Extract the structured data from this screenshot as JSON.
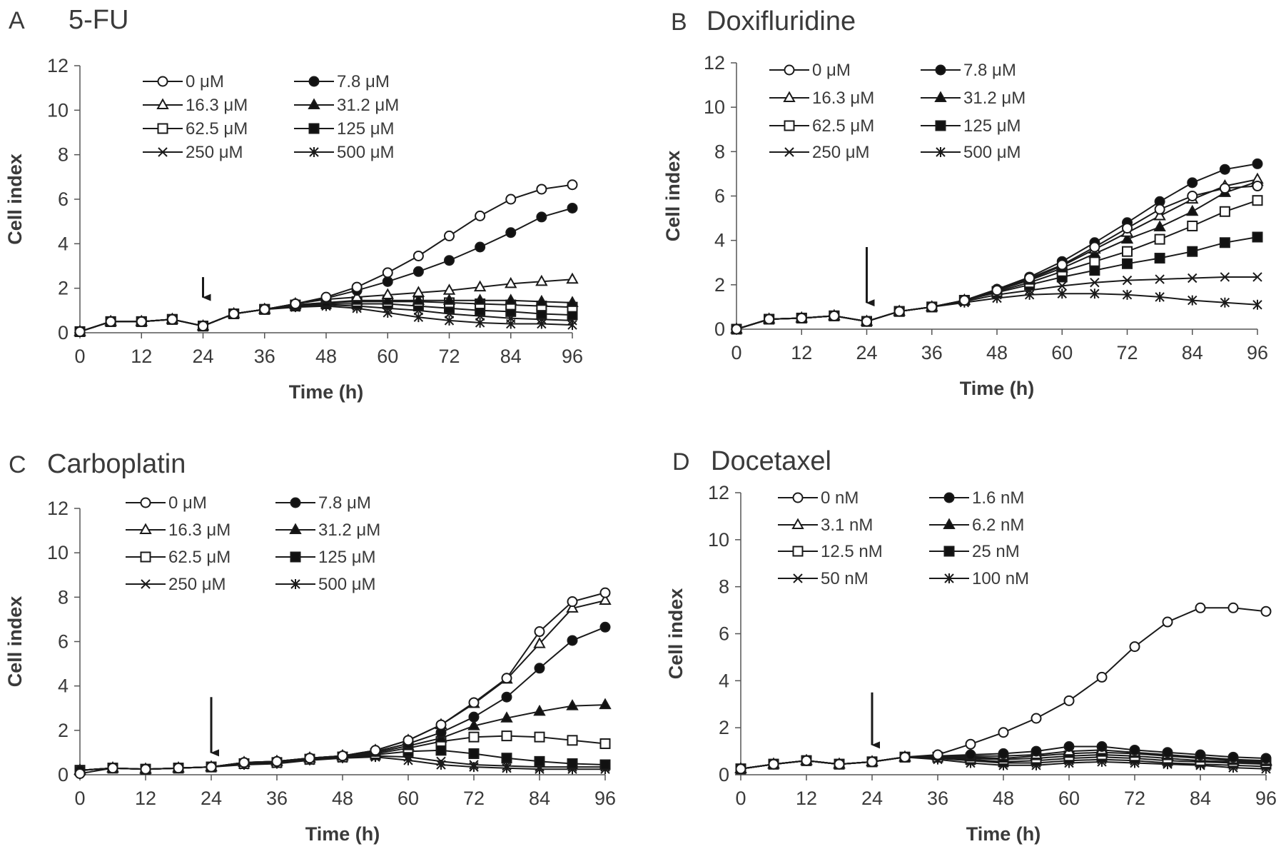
{
  "chart_data": [
    {
      "type": "line",
      "panel_letter": "A",
      "title": "5-FU",
      "xlabel": "Time (h)",
      "ylabel": "Cell index",
      "xlim": [
        0,
        96
      ],
      "ylim": [
        0,
        12
      ],
      "xticks": [
        0,
        12,
        24,
        36,
        48,
        60,
        72,
        84,
        96
      ],
      "yticks": [
        0,
        2,
        4,
        6,
        8,
        10,
        12
      ],
      "grid": false,
      "legend_position": "top",
      "annotation": {
        "type": "arrow",
        "x": 24,
        "y_from": 2.5,
        "y_to": 1.2
      },
      "x": [
        0,
        6,
        12,
        18,
        24,
        30,
        36,
        42,
        48,
        54,
        60,
        66,
        72,
        78,
        84,
        90,
        96
      ],
      "series": [
        {
          "name": "0 μM",
          "marker": "circle-open",
          "values": [
            0.05,
            0.5,
            0.5,
            0.6,
            0.3,
            0.85,
            1.05,
            1.3,
            1.6,
            2.05,
            2.7,
            3.45,
            4.35,
            5.25,
            6.0,
            6.45,
            6.65
          ]
        },
        {
          "name": "7.8 μM",
          "marker": "circle-filled",
          "values": [
            0.05,
            0.5,
            0.5,
            0.6,
            0.3,
            0.85,
            1.05,
            1.3,
            1.55,
            1.9,
            2.3,
            2.75,
            3.25,
            3.85,
            4.5,
            5.2,
            5.6
          ]
        },
        {
          "name": "16.3 μM",
          "marker": "triangle-open",
          "values": [
            0.05,
            0.5,
            0.5,
            0.6,
            0.3,
            0.85,
            1.05,
            1.3,
            1.5,
            1.6,
            1.7,
            1.8,
            1.9,
            2.05,
            2.2,
            2.3,
            2.4
          ]
        },
        {
          "name": "31.2 μM",
          "marker": "triangle-filled",
          "values": [
            0.05,
            0.5,
            0.5,
            0.6,
            0.3,
            0.85,
            1.05,
            1.25,
            1.35,
            1.45,
            1.45,
            1.45,
            1.45,
            1.45,
            1.45,
            1.4,
            1.35
          ]
        },
        {
          "name": "62.5 μM",
          "marker": "square-open",
          "values": [
            0.05,
            0.5,
            0.5,
            0.6,
            0.3,
            0.85,
            1.05,
            1.25,
            1.35,
            1.4,
            1.4,
            1.4,
            1.35,
            1.3,
            1.25,
            1.2,
            1.15
          ]
        },
        {
          "name": "125 μM",
          "marker": "square-filled",
          "values": [
            0.05,
            0.5,
            0.5,
            0.6,
            0.3,
            0.85,
            1.05,
            1.2,
            1.3,
            1.3,
            1.3,
            1.2,
            1.1,
            1.0,
            0.95,
            0.85,
            0.8
          ]
        },
        {
          "name": "250 μM",
          "marker": "x",
          "values": [
            0.05,
            0.5,
            0.5,
            0.6,
            0.3,
            0.85,
            1.05,
            1.2,
            1.25,
            1.2,
            1.1,
            1.0,
            0.85,
            0.75,
            0.65,
            0.6,
            0.55
          ]
        },
        {
          "name": "500 μM",
          "marker": "asterisk",
          "values": [
            0.05,
            0.5,
            0.5,
            0.6,
            0.3,
            0.85,
            1.05,
            1.15,
            1.2,
            1.1,
            0.9,
            0.7,
            0.55,
            0.45,
            0.4,
            0.4,
            0.35
          ]
        }
      ]
    },
    {
      "type": "line",
      "panel_letter": "B",
      "title": "Doxifluridine",
      "xlabel": "Time (h)",
      "ylabel": "Cell index",
      "xlim": [
        0,
        96
      ],
      "ylim": [
        0,
        12
      ],
      "xticks": [
        0,
        12,
        24,
        36,
        48,
        60,
        72,
        84,
        96
      ],
      "yticks": [
        0,
        2,
        4,
        6,
        8,
        10,
        12
      ],
      "grid": false,
      "legend_position": "top",
      "annotation": {
        "type": "arrow",
        "x": 24,
        "y_from": 3.7,
        "y_to": 0.8
      },
      "x": [
        0,
        6,
        12,
        18,
        24,
        30,
        36,
        42,
        48,
        54,
        60,
        66,
        72,
        78,
        84,
        90,
        96
      ],
      "series": [
        {
          "name": "0 μM",
          "marker": "circle-open",
          "values": [
            0.0,
            0.45,
            0.5,
            0.6,
            0.35,
            0.8,
            1.0,
            1.3,
            1.75,
            2.3,
            2.9,
            3.7,
            4.55,
            5.4,
            6.0,
            6.35,
            6.45
          ]
        },
        {
          "name": "7.8 μM",
          "marker": "circle-filled",
          "values": [
            0.0,
            0.45,
            0.5,
            0.6,
            0.35,
            0.8,
            1.0,
            1.3,
            1.8,
            2.35,
            3.05,
            3.9,
            4.8,
            5.75,
            6.6,
            7.2,
            7.45
          ]
        },
        {
          "name": "16.3 μM",
          "marker": "triangle-open",
          "values": [
            0.0,
            0.45,
            0.5,
            0.6,
            0.35,
            0.8,
            1.0,
            1.3,
            1.75,
            2.25,
            2.85,
            3.6,
            4.35,
            5.1,
            5.85,
            6.45,
            6.75
          ]
        },
        {
          "name": "31.2 μM",
          "marker": "triangle-filled",
          "values": [
            0.0,
            0.45,
            0.5,
            0.6,
            0.35,
            0.8,
            1.0,
            1.3,
            1.75,
            2.2,
            2.75,
            3.4,
            4.05,
            4.6,
            5.3,
            6.15,
            6.65
          ]
        },
        {
          "name": "62.5 μM",
          "marker": "square-open",
          "values": [
            0.0,
            0.45,
            0.5,
            0.6,
            0.35,
            0.8,
            1.0,
            1.3,
            1.7,
            2.1,
            2.6,
            3.05,
            3.5,
            4.05,
            4.65,
            5.3,
            5.8
          ]
        },
        {
          "name": "125 μM",
          "marker": "square-filled",
          "values": [
            0.0,
            0.45,
            0.5,
            0.6,
            0.35,
            0.8,
            1.0,
            1.3,
            1.65,
            2.0,
            2.35,
            2.65,
            2.95,
            3.2,
            3.5,
            3.9,
            4.15
          ]
        },
        {
          "name": "250 μM",
          "marker": "x",
          "values": [
            0.0,
            0.45,
            0.5,
            0.6,
            0.35,
            0.8,
            1.0,
            1.25,
            1.55,
            1.75,
            1.95,
            2.1,
            2.2,
            2.25,
            2.3,
            2.35,
            2.35
          ]
        },
        {
          "name": "500 μM",
          "marker": "asterisk",
          "values": [
            0.0,
            0.45,
            0.5,
            0.6,
            0.35,
            0.8,
            1.0,
            1.2,
            1.4,
            1.55,
            1.6,
            1.6,
            1.55,
            1.45,
            1.3,
            1.2,
            1.1
          ]
        }
      ]
    },
    {
      "type": "line",
      "panel_letter": "C",
      "title": "Carboplatin",
      "xlabel": "Time (h)",
      "ylabel": "Cell index",
      "xlim": [
        0,
        96
      ],
      "ylim": [
        0,
        12
      ],
      "xticks": [
        0,
        12,
        24,
        36,
        48,
        60,
        72,
        84,
        96
      ],
      "yticks": [
        0,
        2,
        4,
        6,
        8,
        10,
        12
      ],
      "grid": false,
      "legend_position": "top",
      "annotation": {
        "type": "arrow",
        "x": 24,
        "y_from": 3.5,
        "y_to": 0.6
      },
      "x": [
        0,
        6,
        12,
        18,
        24,
        30,
        36,
        42,
        48,
        54,
        60,
        66,
        72,
        78,
        84,
        90,
        96
      ],
      "series": [
        {
          "name": "0 μM",
          "marker": "circle-open",
          "values": [
            0.05,
            0.3,
            0.25,
            0.3,
            0.35,
            0.55,
            0.6,
            0.75,
            0.85,
            1.1,
            1.55,
            2.25,
            3.25,
            4.35,
            6.45,
            7.8,
            8.2
          ]
        },
        {
          "name": "7.8 μM",
          "marker": "circle-filled",
          "values": [
            0.2,
            0.3,
            0.25,
            0.3,
            0.35,
            0.55,
            0.6,
            0.75,
            0.85,
            1.05,
            1.4,
            1.9,
            2.6,
            3.5,
            4.8,
            6.05,
            6.65
          ]
        },
        {
          "name": "16.3 μM",
          "marker": "triangle-open",
          "values": [
            0.2,
            0.3,
            0.25,
            0.3,
            0.35,
            0.55,
            0.6,
            0.75,
            0.85,
            1.1,
            1.55,
            2.25,
            3.2,
            4.3,
            5.9,
            7.5,
            7.85
          ]
        },
        {
          "name": "31.2 μM",
          "marker": "triangle-filled",
          "values": [
            0.2,
            0.3,
            0.25,
            0.3,
            0.35,
            0.55,
            0.6,
            0.75,
            0.85,
            1.0,
            1.3,
            1.65,
            2.2,
            2.55,
            2.85,
            3.1,
            3.15
          ]
        },
        {
          "name": "62.5 μM",
          "marker": "square-open",
          "values": [
            0.2,
            0.3,
            0.25,
            0.3,
            0.35,
            0.5,
            0.55,
            0.7,
            0.8,
            0.95,
            1.2,
            1.5,
            1.7,
            1.75,
            1.7,
            1.55,
            1.4
          ]
        },
        {
          "name": "125 μM",
          "marker": "square-filled",
          "values": [
            0.2,
            0.3,
            0.25,
            0.3,
            0.35,
            0.5,
            0.55,
            0.7,
            0.8,
            0.9,
            1.05,
            1.1,
            0.95,
            0.75,
            0.6,
            0.5,
            0.45
          ]
        },
        {
          "name": "250 μM",
          "marker": "x",
          "values": [
            0.2,
            0.3,
            0.25,
            0.3,
            0.35,
            0.5,
            0.55,
            0.7,
            0.8,
            0.85,
            0.8,
            0.6,
            0.45,
            0.4,
            0.35,
            0.35,
            0.35
          ]
        },
        {
          "name": "500 μM",
          "marker": "asterisk",
          "values": [
            0.2,
            0.3,
            0.25,
            0.3,
            0.35,
            0.45,
            0.5,
            0.65,
            0.75,
            0.8,
            0.65,
            0.45,
            0.35,
            0.3,
            0.25,
            0.25,
            0.25
          ]
        }
      ]
    },
    {
      "type": "line",
      "panel_letter": "D",
      "title": "Docetaxel",
      "xlabel": "Time (h)",
      "ylabel": "Cell index",
      "xlim": [
        0,
        96
      ],
      "ylim": [
        0,
        12
      ],
      "xticks": [
        0,
        12,
        24,
        36,
        48,
        60,
        72,
        84,
        96
      ],
      "yticks": [
        0,
        2,
        4,
        6,
        8,
        10,
        12
      ],
      "grid": false,
      "legend_position": "top",
      "annotation": {
        "type": "arrow",
        "x": 24,
        "y_from": 3.5,
        "y_to": 0.9
      },
      "x": [
        0,
        6,
        12,
        18,
        24,
        30,
        36,
        42,
        48,
        54,
        60,
        66,
        72,
        78,
        84,
        90,
        96
      ],
      "series": [
        {
          "name": "0 nM",
          "marker": "circle-open",
          "values": [
            0.25,
            0.45,
            0.6,
            0.45,
            0.55,
            0.75,
            0.85,
            1.3,
            1.8,
            2.4,
            3.15,
            4.15,
            5.45,
            6.5,
            7.1,
            7.1,
            6.95
          ]
        },
        {
          "name": "1.6 nM",
          "marker": "circle-filled",
          "values": [
            0.25,
            0.45,
            0.6,
            0.45,
            0.55,
            0.75,
            0.8,
            0.85,
            0.9,
            1.0,
            1.2,
            1.2,
            1.05,
            0.95,
            0.85,
            0.75,
            0.7
          ]
        },
        {
          "name": "3.1 nM",
          "marker": "triangle-open",
          "values": [
            0.25,
            0.45,
            0.6,
            0.45,
            0.55,
            0.75,
            0.8,
            0.8,
            0.8,
            0.85,
            1.0,
            1.05,
            0.95,
            0.85,
            0.75,
            0.65,
            0.6
          ]
        },
        {
          "name": "6.2 nM",
          "marker": "triangle-filled",
          "values": [
            0.25,
            0.45,
            0.6,
            0.45,
            0.55,
            0.75,
            0.8,
            0.75,
            0.7,
            0.8,
            0.9,
            0.95,
            0.9,
            0.8,
            0.7,
            0.6,
            0.55
          ]
        },
        {
          "name": "12.5 nM",
          "marker": "square-open",
          "values": [
            0.25,
            0.45,
            0.6,
            0.45,
            0.55,
            0.75,
            0.75,
            0.7,
            0.65,
            0.7,
            0.8,
            0.85,
            0.8,
            0.7,
            0.6,
            0.55,
            0.5
          ]
        },
        {
          "name": "25 nM",
          "marker": "square-filled",
          "values": [
            0.25,
            0.45,
            0.6,
            0.45,
            0.55,
            0.75,
            0.75,
            0.65,
            0.55,
            0.6,
            0.7,
            0.75,
            0.7,
            0.6,
            0.55,
            0.5,
            0.45
          ]
        },
        {
          "name": "50 nM",
          "marker": "x",
          "values": [
            0.25,
            0.45,
            0.6,
            0.45,
            0.55,
            0.75,
            0.7,
            0.6,
            0.5,
            0.5,
            0.6,
            0.65,
            0.6,
            0.5,
            0.45,
            0.4,
            0.35
          ]
        },
        {
          "name": "100 nM",
          "marker": "asterisk",
          "values": [
            0.25,
            0.45,
            0.6,
            0.45,
            0.55,
            0.75,
            0.65,
            0.5,
            0.4,
            0.4,
            0.5,
            0.55,
            0.5,
            0.45,
            0.4,
            0.3,
            0.25
          ]
        }
      ]
    }
  ]
}
